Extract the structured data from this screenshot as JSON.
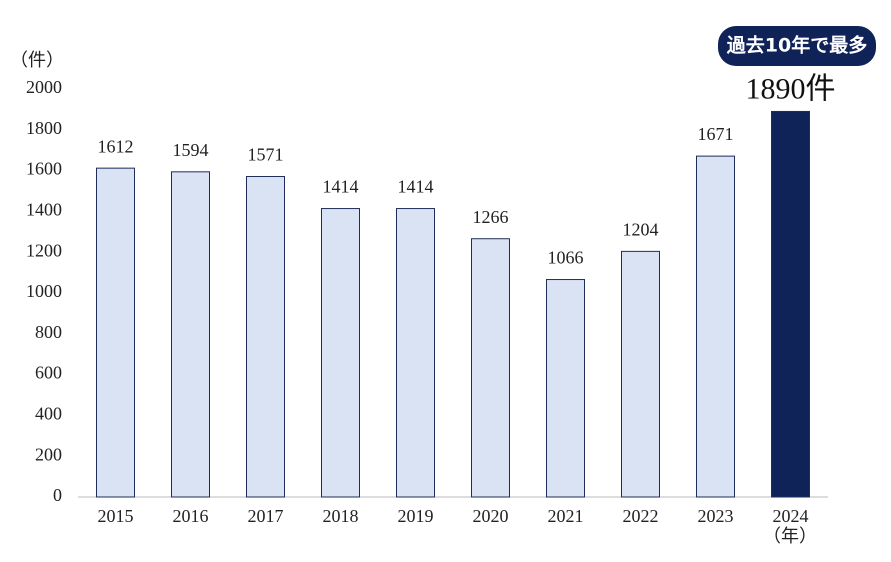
{
  "chart_data": {
    "type": "bar",
    "y_unit": "（件）",
    "x_unit": "（年）",
    "annotation": "過去10年で最多",
    "categories": [
      "2015",
      "2016",
      "2017",
      "2018",
      "2019",
      "2020",
      "2021",
      "2022",
      "2023",
      "2024"
    ],
    "values": [
      1612,
      1594,
      1571,
      1414,
      1414,
      1266,
      1066,
      1204,
      1671,
      1890
    ],
    "value_labels": [
      "1612",
      "1594",
      "1571",
      "1414",
      "1414",
      "1266",
      "1066",
      "1204",
      "1671",
      "1890件"
    ],
    "colors": [
      "#dae3f3",
      "#dae3f3",
      "#dae3f3",
      "#dae3f3",
      "#dae3f3",
      "#dae3f3",
      "#dae3f3",
      "#dae3f3",
      "#dae3f3",
      "#0f2359"
    ],
    "edge_color": "#1f2d5a",
    "ylim": [
      0,
      2000
    ],
    "yticks": [
      0,
      200,
      400,
      600,
      800,
      1000,
      1200,
      1400,
      1600,
      1800,
      2000
    ],
    "grid": false
  }
}
